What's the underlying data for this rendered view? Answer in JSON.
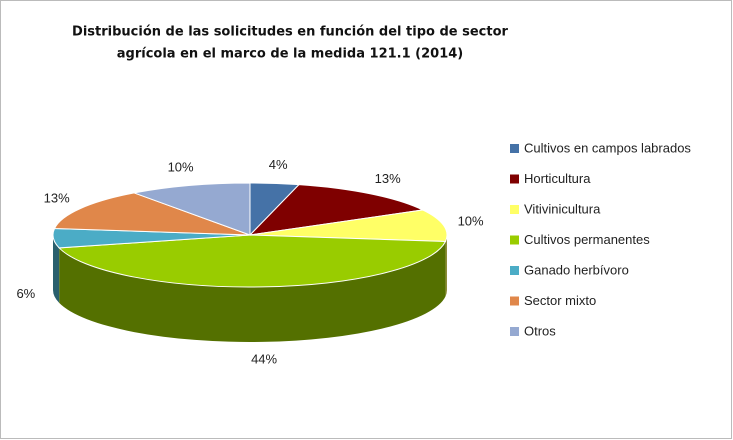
{
  "chart_data": {
    "type": "pie3d",
    "title": [
      "Distribución de las solicitudes en función del tipo de sector",
      "agrícola en el marco de la medida 121.1 (2014)"
    ],
    "categories": [
      "Cultivos en campos labrados",
      "Horticultura",
      "Vitivinicultura",
      "Cultivos permanentes",
      "Ganado herbívoro",
      "Sector mixto",
      "Otros"
    ],
    "values": [
      4,
      13,
      10,
      44,
      6,
      13,
      10
    ],
    "value_labels": [
      "4%",
      "13%",
      "10%",
      "44%",
      "6%",
      "13%",
      "10%"
    ],
    "colors": [
      "#4572a7",
      "#7f0000",
      "#ffff66",
      "#99cc00",
      "#4bacc6",
      "#e0874a",
      "#95a9d1"
    ],
    "legend": "right"
  }
}
